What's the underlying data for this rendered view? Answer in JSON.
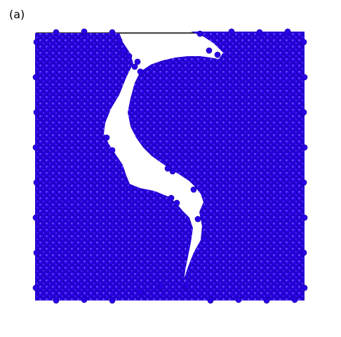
{
  "figure": {
    "panel_label": "(a)",
    "particle_color": "#2a00e0",
    "particle_edge_color": "#1200a0",
    "highlight_color": "#6a50ff",
    "frame_color": "#000000",
    "background_color": "#ffffff"
  }
}
